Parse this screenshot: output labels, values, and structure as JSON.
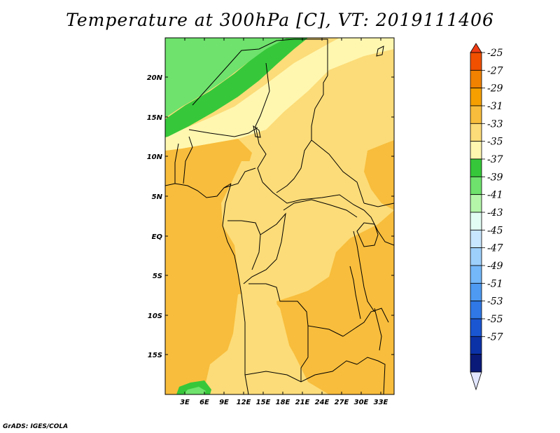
{
  "title": "Temperature at 300hPa [C], VT: 2019111406",
  "credit": "GrADS: IGES/COLA",
  "map": {
    "lat_ticks": [
      "20N",
      "15N",
      "10N",
      "5N",
      "EQ",
      "5S",
      "10S",
      "15S"
    ],
    "lon_ticks": [
      "3E",
      "6E",
      "9E",
      "12E",
      "15E",
      "18E",
      "21E",
      "24E",
      "27E",
      "30E",
      "33E"
    ]
  },
  "colorbar": {
    "labels": [
      "-25",
      "-27",
      "-29",
      "-31",
      "-33",
      "-35",
      "-37",
      "-39",
      "-41",
      "-43",
      "-45",
      "-47",
      "-49",
      "-51",
      "-53",
      "-55",
      "-57"
    ],
    "colors": [
      "#f05000",
      "#f08200",
      "#f5a000",
      "#f8bd3c",
      "#fcdc78",
      "#fff7b0",
      "#36c83a",
      "#6ee26c",
      "#b4f5aa",
      "#e2fdf4",
      "#c8e6ff",
      "#9ed0fc",
      "#74b8fa",
      "#4e9af2",
      "#2f78e6",
      "#1a56d2",
      "#0c32a8",
      "#0a1a78"
    ],
    "top_color": "#f03c14",
    "bottom_color": "#e2e6ff"
  }
}
